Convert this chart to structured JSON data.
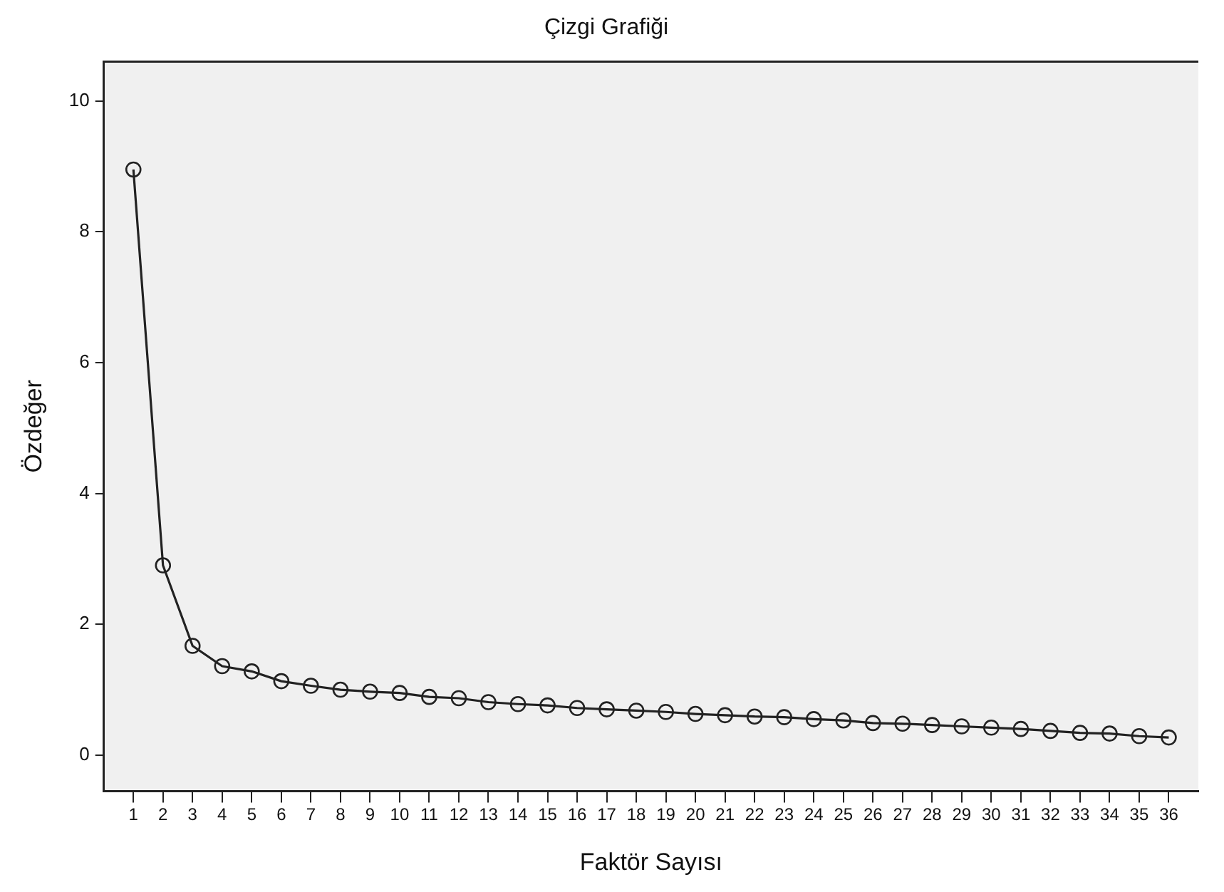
{
  "chart_data": {
    "type": "line",
    "title": "Çizgi Grafiği",
    "xlabel": "Faktör Sayısı",
    "ylabel": "Özdeğer",
    "x": [
      1,
      2,
      3,
      4,
      5,
      6,
      7,
      8,
      9,
      10,
      11,
      12,
      13,
      14,
      15,
      16,
      17,
      18,
      19,
      20,
      21,
      22,
      23,
      24,
      25,
      26,
      27,
      28,
      29,
      30,
      31,
      32,
      33,
      34,
      35,
      36
    ],
    "series": [
      {
        "color": "#222222",
        "values": [
          8.95,
          2.9,
          1.67,
          1.36,
          1.28,
          1.13,
          1.06,
          1.0,
          0.97,
          0.95,
          0.89,
          0.87,
          0.81,
          0.78,
          0.76,
          0.72,
          0.7,
          0.68,
          0.66,
          0.63,
          0.61,
          0.59,
          0.58,
          0.55,
          0.53,
          0.49,
          0.48,
          0.46,
          0.44,
          0.42,
          0.4,
          0.37,
          0.34,
          0.33,
          0.29,
          0.27
        ]
      }
    ],
    "xlim": [
      0,
      37
    ],
    "xticks": [
      1,
      2,
      3,
      4,
      5,
      6,
      7,
      8,
      9,
      10,
      11,
      12,
      13,
      14,
      15,
      16,
      17,
      18,
      19,
      20,
      21,
      22,
      23,
      24,
      25,
      26,
      27,
      28,
      29,
      30,
      31,
      32,
      33,
      34,
      35,
      36
    ],
    "ylim": [
      -0.55,
      10.6
    ],
    "yticks": [
      0,
      2,
      4,
      6,
      8,
      10
    ],
    "grid": false,
    "legend": false,
    "marker": "circle",
    "line_style": "solid"
  }
}
